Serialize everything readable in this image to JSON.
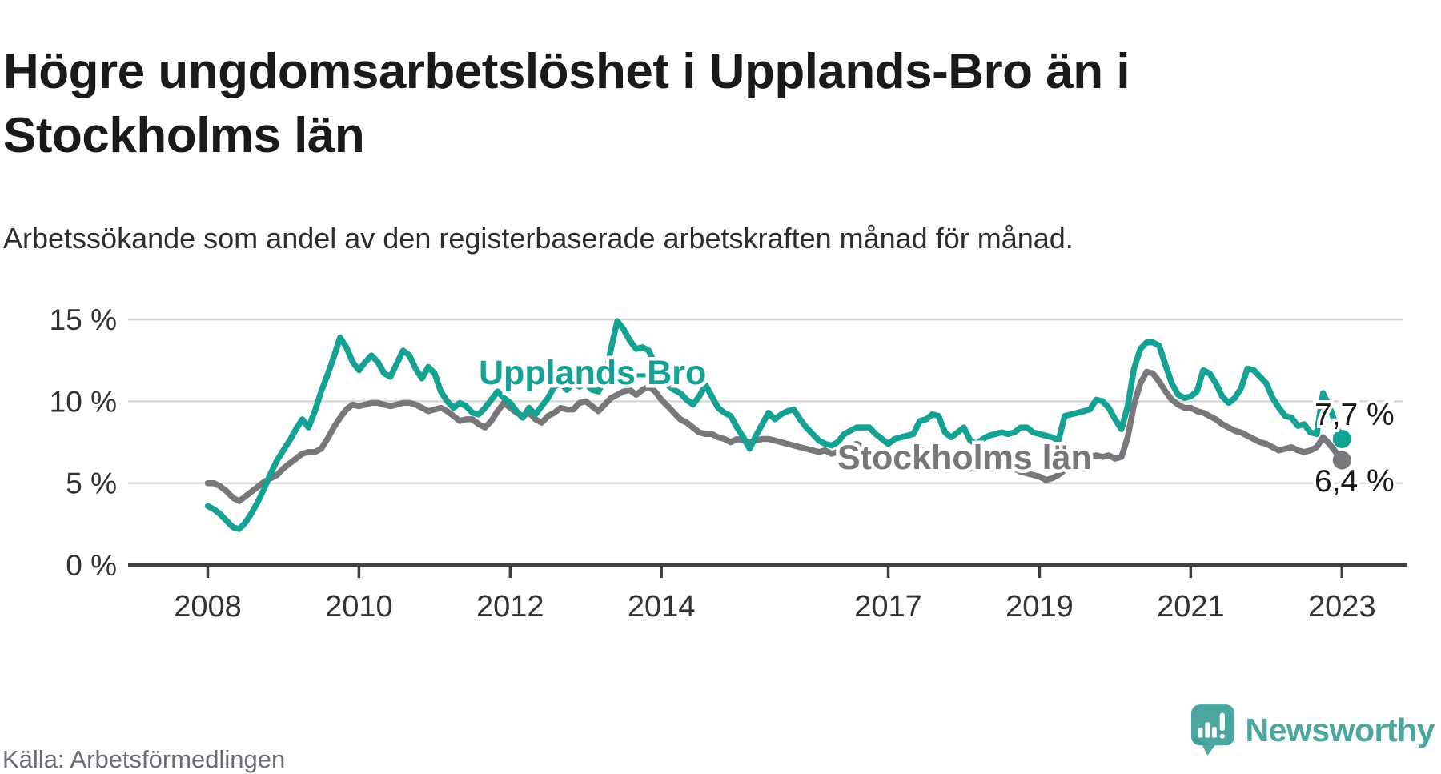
{
  "header": {
    "title": "Högre ungdomsarbetslöshet i Upplands-Bro än i Stockholms län",
    "subtitle": "Arbetssökande som andel av den registerbaserade arbetskraften månad för månad."
  },
  "footer": {
    "source": "Källa: Arbetsförmedlingen",
    "brand_name": "Newsworthy",
    "brand_icon": "newsworthy-speech-bubble-chart-icon"
  },
  "colors": {
    "series_upplands_bro": "#15a292",
    "series_stockholm": "#77777c",
    "grid": "#d8d8d8",
    "axis": "#404040",
    "axis_text": "#333333",
    "end_label_text": "#1a1a1a",
    "brand_teal": "#4aa69e"
  },
  "chart_data": {
    "type": "line",
    "x_interval": "monthly",
    "x_start_year": 2008,
    "x_end_label_note": "series end marked with dot and value label",
    "x_tick_labels": [
      "2008",
      "2010",
      "2012",
      "2014",
      "2017",
      "2019",
      "2021",
      "2023"
    ],
    "x_tick_years": [
      2008,
      2010,
      2012,
      2014,
      2017,
      2019,
      2021,
      2023
    ],
    "y_tick_values": [
      0,
      5,
      10,
      15
    ],
    "y_tick_labels": [
      "0 %",
      "5 %",
      "10 %",
      "15 %"
    ],
    "ylim": [
      0,
      16.6
    ],
    "grid": "horizontal",
    "legend_position": "inline-labels-on-lines",
    "series": [
      {
        "name": "Upplands-Bro",
        "end_label": "7,7 %",
        "end_value": 7.7,
        "values": [
          3.6,
          3.4,
          3.1,
          2.7,
          2.3,
          2.2,
          2.6,
          3.2,
          3.9,
          4.7,
          5.6,
          6.4,
          7.0,
          7.6,
          8.3,
          8.9,
          8.4,
          9.4,
          10.6,
          11.6,
          12.7,
          13.9,
          13.3,
          12.4,
          11.9,
          12.4,
          12.8,
          12.4,
          11.7,
          11.5,
          12.3,
          13.1,
          12.8,
          12.0,
          11.4,
          12.1,
          11.7,
          10.6,
          10.0,
          9.6,
          9.9,
          9.7,
          9.3,
          9.2,
          9.6,
          10.1,
          10.6,
          10.2,
          9.9,
          9.4,
          9.0,
          9.6,
          9.2,
          9.7,
          10.2,
          10.9,
          11.1,
          10.7,
          11.1,
          10.9,
          11.1,
          10.7,
          10.6,
          11.4,
          13.2,
          14.9,
          14.4,
          13.7,
          13.2,
          13.3,
          13.1,
          12.2,
          11.2,
          11.0,
          10.7,
          10.5,
          10.1,
          9.8,
          10.3,
          11.0,
          10.3,
          9.6,
          9.3,
          9.1,
          8.4,
          7.8,
          7.1,
          7.9,
          8.6,
          9.3,
          8.9,
          9.2,
          9.4,
          9.5,
          8.9,
          8.4,
          8.0,
          7.6,
          7.4,
          7.3,
          7.5,
          8.0,
          8.2,
          8.4,
          8.4,
          8.4,
          8.0,
          7.7,
          7.4,
          7.7,
          7.8,
          7.9,
          8.0,
          8.8,
          8.9,
          9.2,
          9.1,
          8.1,
          7.8,
          8.1,
          8.4,
          7.6,
          7.4,
          7.7,
          7.9,
          8.0,
          8.1,
          8.0,
          8.1,
          8.4,
          8.4,
          8.1,
          8.0,
          7.9,
          7.8,
          7.6,
          9.1,
          9.2,
          9.3,
          9.4,
          9.5,
          10.1,
          10.0,
          9.6,
          8.9,
          8.3,
          9.7,
          12.0,
          13.2,
          13.6,
          13.6,
          13.4,
          12.2,
          11.1,
          10.4,
          10.2,
          10.3,
          10.6,
          11.9,
          11.7,
          11.1,
          10.3,
          9.9,
          10.2,
          10.8,
          12.0,
          11.9,
          11.5,
          11.1,
          10.2,
          9.6,
          9.1,
          9.0,
          8.5,
          8.6,
          8.1,
          8.0,
          10.5,
          9.7,
          8.6,
          7.7
        ]
      },
      {
        "name": "Stockholms län",
        "end_label": "6,4 %",
        "end_value": 6.4,
        "values": [
          5.0,
          5.0,
          4.8,
          4.5,
          4.1,
          3.9,
          4.2,
          4.5,
          4.8,
          5.1,
          5.3,
          5.5,
          5.9,
          6.2,
          6.5,
          6.8,
          6.9,
          6.9,
          7.1,
          7.7,
          8.4,
          9.0,
          9.5,
          9.8,
          9.7,
          9.8,
          9.9,
          9.9,
          9.8,
          9.7,
          9.8,
          9.9,
          9.9,
          9.8,
          9.6,
          9.4,
          9.5,
          9.6,
          9.4,
          9.1,
          8.8,
          8.9,
          8.9,
          8.6,
          8.4,
          8.8,
          9.4,
          9.9,
          9.6,
          9.3,
          9.1,
          9.3,
          8.9,
          8.7,
          9.1,
          9.3,
          9.6,
          9.5,
          9.5,
          9.9,
          10.0,
          9.7,
          9.4,
          9.8,
          10.2,
          10.4,
          10.6,
          10.7,
          10.4,
          10.7,
          10.9,
          10.6,
          10.1,
          9.7,
          9.3,
          8.9,
          8.7,
          8.4,
          8.1,
          8.0,
          8.0,
          7.8,
          7.7,
          7.5,
          7.7,
          7.6,
          7.5,
          7.6,
          7.7,
          7.7,
          7.6,
          7.5,
          7.4,
          7.3,
          7.2,
          7.1,
          7.0,
          6.9,
          7.0,
          6.8,
          6.9,
          7.1,
          7.3,
          7.4,
          7.2,
          7.0,
          6.9,
          6.8,
          6.6,
          6.5,
          6.6,
          6.7,
          6.9,
          7.0,
          7.0,
          6.9,
          6.7,
          6.5,
          6.3,
          6.2,
          6.0,
          5.9,
          6.0,
          6.1,
          6.2,
          6.3,
          6.2,
          6.1,
          5.9,
          5.7,
          5.6,
          5.5,
          5.4,
          5.2,
          5.3,
          5.5,
          5.8,
          6.1,
          6.3,
          6.5,
          6.6,
          6.7,
          6.6,
          6.7,
          6.5,
          6.6,
          7.8,
          9.8,
          11.1,
          11.8,
          11.7,
          11.2,
          10.6,
          10.1,
          9.8,
          9.6,
          9.6,
          9.4,
          9.3,
          9.1,
          8.9,
          8.6,
          8.4,
          8.2,
          8.1,
          7.9,
          7.7,
          7.5,
          7.4,
          7.2,
          7.0,
          7.1,
          7.2,
          7.0,
          6.9,
          7.0,
          7.2,
          7.8,
          7.4,
          6.9,
          6.4
        ]
      }
    ]
  }
}
